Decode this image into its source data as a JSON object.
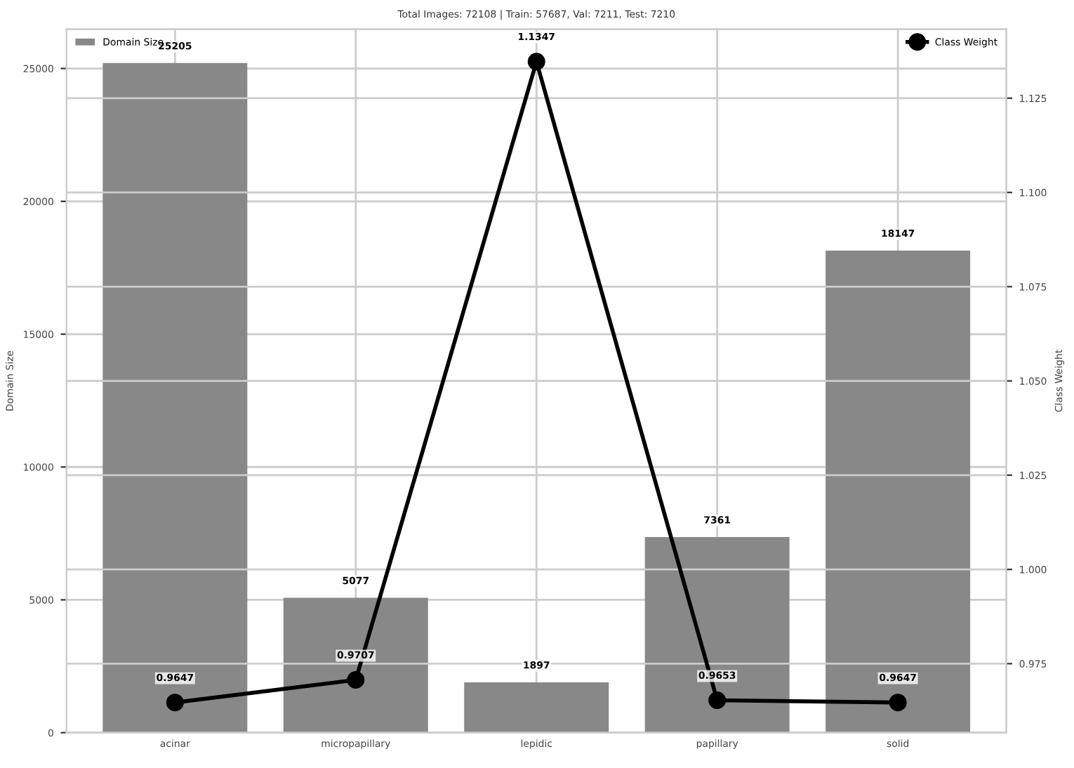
{
  "chart_data": {
    "type": "bar",
    "title": "Total Images: 72108 | Train: 57687, Val: 7211, Test: 7210",
    "categories": [
      "acinar",
      "micropapillary",
      "lepidic",
      "papillary",
      "solid"
    ],
    "series": [
      {
        "name": "Domain Size",
        "color": "#888888",
        "values": [
          25205,
          5077,
          1897,
          7361,
          18147
        ]
      },
      {
        "name": "Class Weight",
        "type": "line",
        "axis": "y2",
        "color": "#000000",
        "values": [
          0.9647,
          0.9707,
          1.1347,
          0.9653,
          0.9647
        ]
      }
    ],
    "ylabel": "Domain Size",
    "y2label": "Class Weight",
    "ylim": [
      0,
      26480
    ],
    "yticks": [
      0,
      5000,
      10000,
      15000,
      20000,
      25000
    ],
    "y2lim": [
      0.9567,
      1.1433
    ],
    "y2ticks": [
      0.975,
      {
        "value": 1.0,
        "label": "1.000"
      },
      1.025,
      {
        "value": 1.05,
        "label": "1.050"
      },
      1.075,
      {
        "value": 1.1,
        "label": "1.100"
      },
      1.125
    ],
    "data_labels": true,
    "grid": true,
    "legend": "top",
    "marker": "circle",
    "line_style": "solid"
  }
}
